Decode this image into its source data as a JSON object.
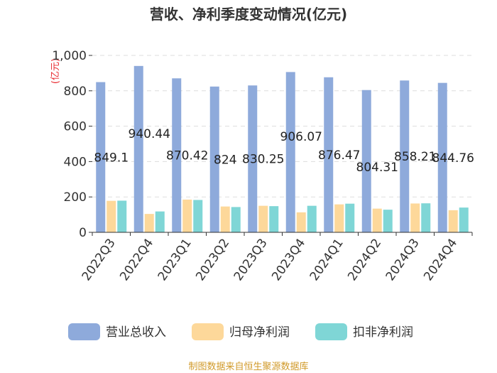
{
  "chart_data": {
    "type": "bar",
    "title": "营收、净利季度变动情况(亿元)",
    "unit_label": "(亿元)",
    "categories": [
      "2022Q3",
      "2022Q4",
      "2023Q1",
      "2023Q2",
      "2023Q3",
      "2023Q4",
      "2024Q1",
      "2024Q2",
      "2024Q3",
      "2024Q4"
    ],
    "series": [
      {
        "name": "营业总收入",
        "color": "#8eaadb",
        "values": [
          849.1,
          940.44,
          870.42,
          824,
          830.25,
          906.07,
          876.47,
          804.31,
          858.21,
          844.76
        ],
        "labels": [
          "849.1",
          "940.44",
          "870.42",
          "824",
          "830.25",
          "906.07",
          "876.47",
          "804.31",
          "858.21",
          "844.76"
        ]
      },
      {
        "name": "归母净利润",
        "color": "#fdd89a",
        "values": [
          178,
          104,
          185,
          146,
          150,
          113,
          158,
          134,
          163,
          125
        ]
      },
      {
        "name": "扣非净利润",
        "color": "#7fd6d6",
        "values": [
          179,
          118,
          183,
          143,
          148,
          150,
          162,
          128,
          164,
          140
        ]
      }
    ],
    "yticks": [
      "0",
      "200",
      "400",
      "600",
      "800",
      "1,000"
    ],
    "ylim": [
      0,
      1000
    ],
    "grid": true,
    "legend": "bottom"
  },
  "source": "制图数据来自恒生聚源数据库"
}
